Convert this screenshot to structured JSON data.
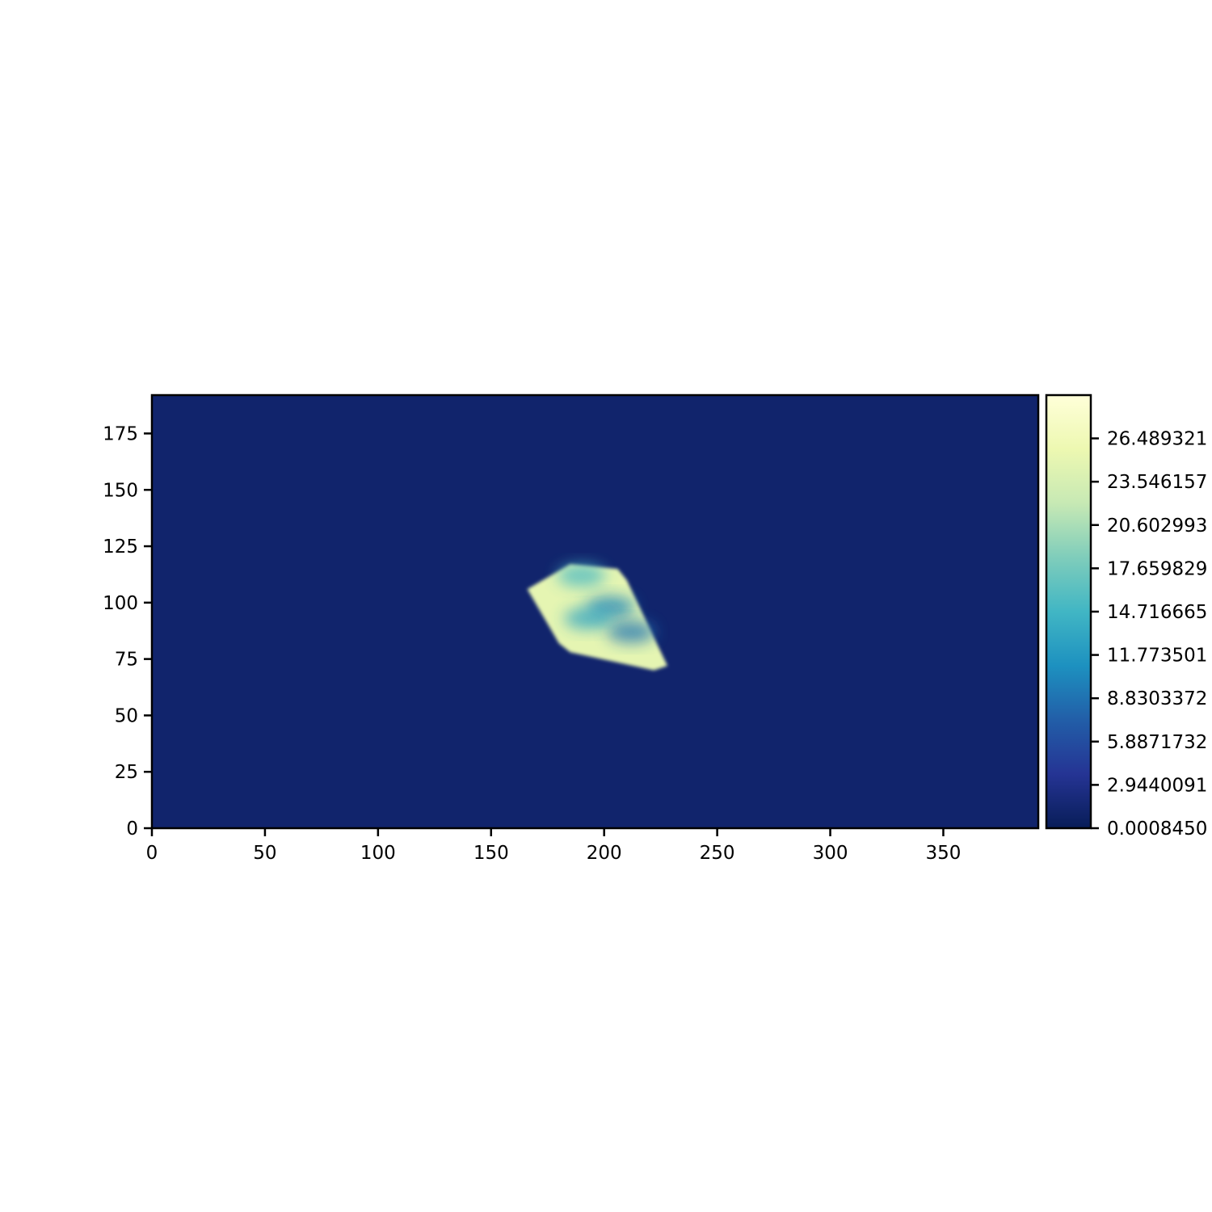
{
  "chart_data": {
    "type": "heatmap",
    "title": "",
    "xlabel": "",
    "ylabel": "",
    "xlim": [
      0,
      392
    ],
    "ylim": [
      0,
      192
    ],
    "grid": false,
    "x_ticks": [
      0,
      50,
      100,
      150,
      200,
      250,
      300,
      350
    ],
    "y_ticks": [
      0,
      25,
      50,
      75,
      100,
      125,
      150,
      175
    ],
    "background_value": 1.2,
    "colormap": {
      "name": "YlGnBu",
      "stops": [
        "#081d58",
        "#253494",
        "#225ea8",
        "#1d91c0",
        "#41b6c4",
        "#7fcdbb",
        "#c7e9b4",
        "#edf8b1",
        "#ffffd9"
      ]
    },
    "colorbar": {
      "range": [
        0.000845,
        29.43
      ],
      "tick_values": [
        0.000845,
        2.944009,
        5.887173,
        8.830337,
        11.773501,
        14.716665,
        17.659829,
        20.602993,
        23.546157,
        26.489321
      ],
      "tick_labels": [
        "0.0008450",
        "2.9440091",
        "5.8871732",
        "8.8303372",
        "11.773501",
        "14.716665",
        "17.659829",
        "20.602993",
        "23.546157",
        "26.489321"
      ]
    },
    "object": {
      "description_value": 25,
      "outline": [
        [
          166,
          106
        ],
        [
          185,
          117
        ],
        [
          206,
          115
        ],
        [
          210,
          110
        ],
        [
          228,
          72
        ],
        [
          222,
          70
        ],
        [
          185,
          78
        ],
        [
          180,
          82
        ]
      ],
      "dark_regions": [
        {
          "x": 203,
          "y": 98,
          "value": 10
        },
        {
          "x": 212,
          "y": 87,
          "value": 9
        },
        {
          "x": 193,
          "y": 93,
          "value": 13
        },
        {
          "x": 190,
          "y": 112,
          "value": 15
        }
      ]
    }
  }
}
